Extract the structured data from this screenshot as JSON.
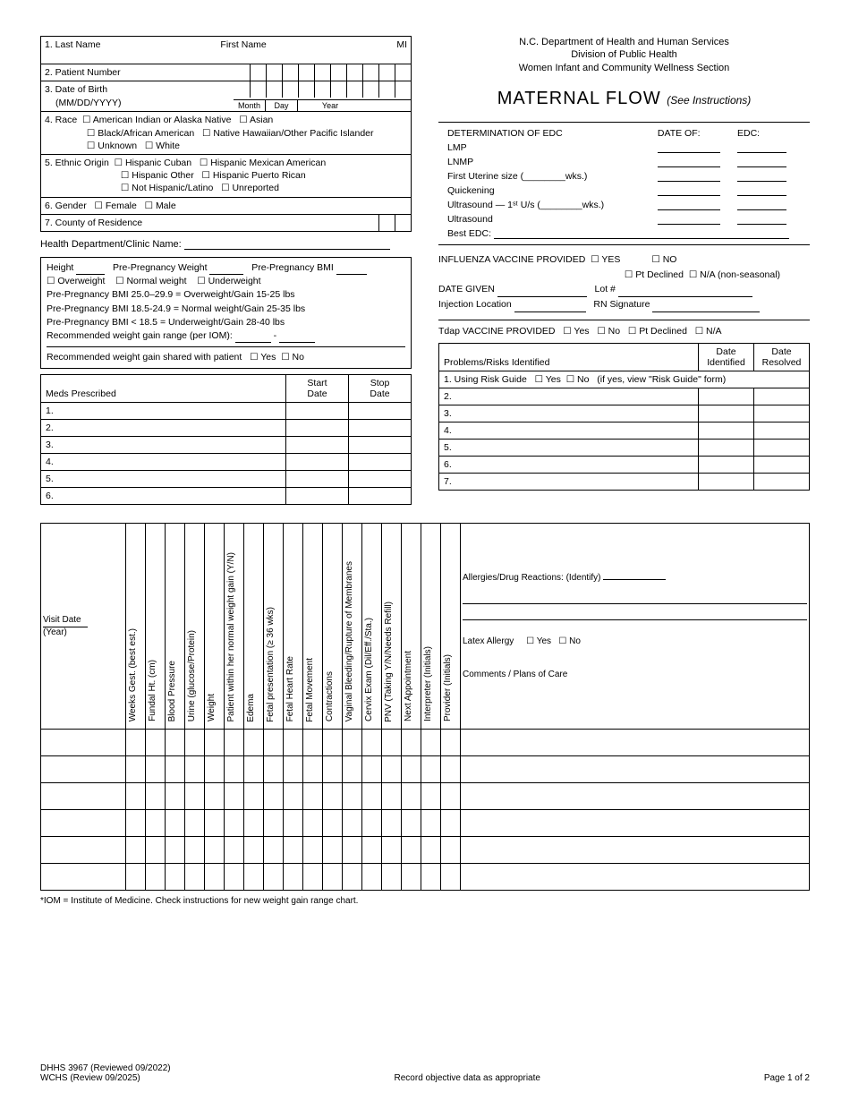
{
  "header": {
    "org1": "N.C. Department of Health and Human Services",
    "org2": "Division of Public Health",
    "org3": "Women Infant and Community Wellness Section"
  },
  "title": {
    "main": "MATERNAL FLOW",
    "sub": "(See Instructions)"
  },
  "demo": {
    "f1_last": "1. Last Name",
    "f1_first": "First Name",
    "f1_mi": "MI",
    "f2": "2. Patient Number",
    "f3": "3. Date of Birth",
    "f3b": "(MM/DD/YYYY)",
    "month": "Month",
    "day": "Day",
    "year": "Year",
    "f4": "4. Race",
    "race": {
      "a": "American Indian or Alaska Native",
      "b": "Asian",
      "c": "Black/African American",
      "d": "Native Hawaiian/Other Pacific Islander",
      "e": "Unknown",
      "f": "White"
    },
    "f5": "5. Ethnic Origin",
    "eth": {
      "a": "Hispanic Cuban",
      "b": "Hispanic Mexican American",
      "c": "Hispanic Other",
      "d": "Hispanic Puerto Rican",
      "e": "Not Hispanic/Latino",
      "f": "Unreported"
    },
    "f6": "6. Gender",
    "gender_f": "Female",
    "gender_m": "Male",
    "f7": "7. County of Residence",
    "clinic": "Health Department/Clinic Name:"
  },
  "bmi": {
    "height": "Height",
    "ppw": "Pre-Pregnancy Weight",
    "ppbmi": "Pre-Pregnancy BMI",
    "ow": "Overweight",
    "nw": "Normal weight",
    "uw": "Underweight",
    "l1": "Pre-Pregnancy BMI 25.0–29.9 = Overweight/Gain 15-25 lbs",
    "l2": "Pre-Pregnancy BMI 18.5-24.9 = Normal weight/Gain 25-35 lbs",
    "l3": "Pre-Pregnancy BMI < 18.5 = Underweight/Gain 28-40 lbs",
    "rec": "Recommended weight gain range (per IOM):",
    "shared": "Recommended weight gain shared with patient",
    "yes": "Yes",
    "no": "No"
  },
  "meds": {
    "h1": "Meds Prescribed",
    "h2": "Start\nDate",
    "h3": "Stop\nDate",
    "rows": [
      "1.",
      "2.",
      "3.",
      "4.",
      "5.",
      "6."
    ]
  },
  "edc": {
    "title": "DETERMINATION OF EDC",
    "dateof": "DATE OF:",
    "edclbl": "EDC:",
    "rows": [
      "LMP",
      "LNMP",
      "First Uterine size (________wks.)",
      "Quickening",
      "Ultrasound — 1ˢᵗ U/s (________wks.)",
      "Ultrasound"
    ],
    "best": "Best EDC:"
  },
  "flu": {
    "title": "INFLUENZA VACCINE PROVIDED",
    "yes": "YES",
    "no": "NO",
    "ptd": "Pt Declined",
    "na": "N/A (non-seasonal)",
    "dategiven": "DATE GIVEN",
    "lot": "Lot #",
    "injloc": "Injection Location",
    "rnsig": "RN Signature"
  },
  "tdap": {
    "title": "Tdap VACCINE PROVIDED",
    "yes": "Yes",
    "no": "No",
    "ptd": "Pt Declined",
    "na": "N/A"
  },
  "probs": {
    "h1": "Problems/Risks Identified",
    "h2": "Date\nIdentified",
    "h3": "Date\nResolved",
    "row1a": "1. Using Risk Guide",
    "row1_yes": "Yes",
    "row1_no": "No",
    "row1b": "(if yes, view \"Risk Guide\" form)",
    "rows": [
      "2.",
      "3.",
      "4.",
      "5.",
      "6.",
      "7."
    ]
  },
  "visits": {
    "visitdate": "Visit Date",
    "year": "(Year)",
    "cols": [
      "Weeks Gest. (best est.)",
      "Fundal Ht. (cm)",
      "Blood Pressure",
      "Urine (glucose/Protein)",
      "Weight",
      "Patient within her normal weight gain (Y/N)",
      "Edema",
      "Fetal presentation (≥ 36 wks)",
      "Fetal Heart  Rate",
      "Fetal Movement",
      "Contractions",
      "Vaginal Bleeding/Rupture of Membranes",
      "Cervix Exam (Dil/Eff./Sta.)",
      "PNV (Taking Y/N/Needs Refill)",
      "Next Appointment",
      "Interpreter (Initials)",
      "Provider (Initials)"
    ],
    "allerg": "Allergies/Drug Reactions: (Identify)",
    "latex": "Latex Allergy",
    "yes": "Yes",
    "no": "No",
    "comments": "Comments / Plans of Care",
    "rowcount": 6
  },
  "footnote": "*IOM = Institute of Medicine. Check instructions for new weight gain range chart.",
  "footer": {
    "l1": "DHHS 3967 (Reviewed 09/2022)",
    "l2": "WCHS (Review 09/2025)",
    "mid": "Record objective data as appropriate",
    "right": "Page 1 of 2"
  }
}
